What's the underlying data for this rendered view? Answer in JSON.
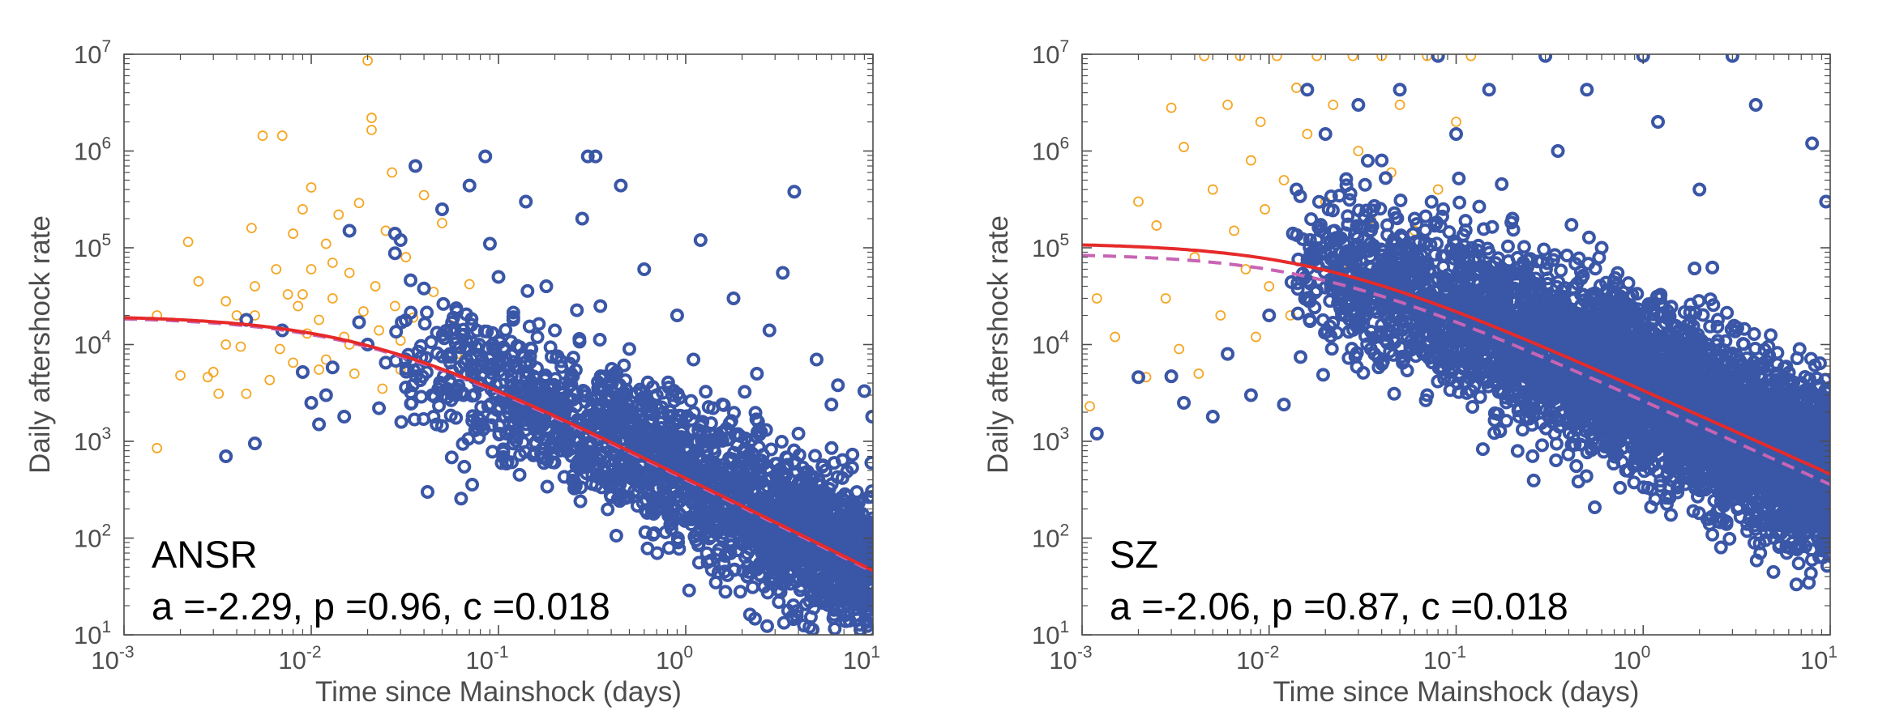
{
  "colors": {
    "background_events": "#f5a623",
    "aftershock_events": "#3a56a6",
    "fit_solid": "#e62a2a",
    "fit_dashed": "#c864b4",
    "axis": "#4d4d4d"
  },
  "chart_data": [
    {
      "type": "scatter",
      "title": "",
      "xlabel": "Time since Mainshock (days)",
      "ylabel": "Daily aftershock rate",
      "xscale": "log",
      "yscale": "log",
      "xlim": [
        0.001,
        10
      ],
      "ylim": [
        10,
        10000000
      ],
      "x_ticks": [
        {
          "base": "10",
          "exp": "-3"
        },
        {
          "base": "10",
          "exp": "-2"
        },
        {
          "base": "10",
          "exp": "-1"
        },
        {
          "base": "10",
          "exp": "0"
        },
        {
          "base": "10",
          "exp": "1"
        }
      ],
      "y_ticks": [
        {
          "base": "10",
          "exp": "1"
        },
        {
          "base": "10",
          "exp": "2"
        },
        {
          "base": "10",
          "exp": "3"
        },
        {
          "base": "10",
          "exp": "4"
        },
        {
          "base": "10",
          "exp": "5"
        },
        {
          "base": "10",
          "exp": "6"
        },
        {
          "base": "10",
          "exp": "7"
        }
      ],
      "annotation_name": "ANSR",
      "annotation_params": "a =-2.29, p =0.96, c =0.018",
      "fit": {
        "a": -2.29,
        "p": 0.96,
        "c": 0.018
      },
      "series": [
        {
          "marker": "small open circle, orange",
          "points": [
            [
              0.0015,
              850
            ],
            [
              0.0015,
              20000
            ],
            [
              0.002,
              4800
            ],
            [
              0.0022,
              115000
            ],
            [
              0.0025,
              45000
            ],
            [
              0.0028,
              4600
            ],
            [
              0.003,
              5200
            ],
            [
              0.0032,
              3100
            ],
            [
              0.0035,
              10000
            ],
            [
              0.0035,
              28000
            ],
            [
              0.004,
              20000
            ],
            [
              0.0042,
              9500
            ],
            [
              0.0045,
              3100
            ],
            [
              0.0048,
              160000
            ],
            [
              0.005,
              40000
            ],
            [
              0.005,
              20000
            ],
            [
              0.0055,
              1440000
            ],
            [
              0.006,
              4300
            ],
            [
              0.0065,
              60000
            ],
            [
              0.0068,
              9000
            ],
            [
              0.007,
              1440000
            ],
            [
              0.0075,
              33000
            ],
            [
              0.008,
              140000
            ],
            [
              0.008,
              6500
            ],
            [
              0.0085,
              25000
            ],
            [
              0.009,
              250000
            ],
            [
              0.0095,
              13000
            ],
            [
              0.01,
              420000
            ],
            [
              0.01,
              60000
            ],
            [
              0.011,
              18000
            ],
            [
              0.012,
              110000
            ],
            [
              0.012,
              7000
            ],
            [
              0.013,
              30000
            ],
            [
              0.014,
              220000
            ],
            [
              0.015,
              12000
            ],
            [
              0.016,
              55000
            ],
            [
              0.017,
              5000
            ],
            [
              0.018,
              290000
            ],
            [
              0.019,
              22000
            ],
            [
              0.02,
              8600000
            ],
            [
              0.021,
              2200000
            ],
            [
              0.021,
              1650000
            ],
            [
              0.022,
              40000
            ],
            [
              0.023,
              14000
            ],
            [
              0.025,
              150000
            ],
            [
              0.027,
              600000
            ],
            [
              0.028,
              25000
            ],
            [
              0.03,
              11000
            ],
            [
              0.032,
              80000
            ],
            [
              0.035,
              19000
            ],
            [
              0.04,
              350000
            ],
            [
              0.045,
              35000
            ],
            [
              0.05,
              180000
            ],
            [
              0.055,
              16000
            ],
            [
              0.06,
              8000
            ],
            [
              0.07,
              42000
            ],
            [
              0.08,
              6000
            ],
            [
              0.009,
              33000
            ],
            [
              0.011,
              5500
            ],
            [
              0.013,
              70000
            ],
            [
              0.016,
              10000
            ],
            [
              0.024,
              3500
            ],
            [
              0.03,
              5500
            ]
          ]
        },
        {
          "marker": "open circle, blue",
          "points": [
            [
              0.0035,
              700
            ],
            [
              0.0045,
              18000
            ],
            [
              0.005,
              950
            ],
            [
              0.007,
              14000
            ],
            [
              0.009,
              5200
            ],
            [
              0.01,
              2500
            ],
            [
              0.011,
              1500
            ],
            [
              0.012,
              3000
            ],
            [
              0.013,
              5800
            ],
            [
              0.015,
              1800
            ],
            [
              0.016,
              150000
            ],
            [
              0.018,
              17000
            ],
            [
              0.02,
              10000
            ],
            [
              0.023,
              2200
            ],
            [
              0.025,
              6500
            ],
            [
              0.028,
              140000
            ],
            [
              0.03,
              120000
            ],
            [
              0.032,
              3600
            ],
            [
              0.036,
              700000
            ],
            [
              0.04,
              38000
            ],
            [
              0.045,
              1800
            ],
            [
              0.05,
              250000
            ],
            [
              0.055,
              8000
            ],
            [
              0.06,
              22000
            ],
            [
              0.065,
              3000
            ],
            [
              0.07,
              440000
            ],
            [
              0.075,
              1300
            ],
            [
              0.085,
              880000
            ],
            [
              0.09,
              110000
            ],
            [
              0.1,
              50000
            ],
            [
              0.1,
              6000
            ],
            [
              0.11,
              1200
            ],
            [
              0.12,
              18000
            ],
            [
              0.13,
              2600
            ],
            [
              0.14,
              300000
            ],
            [
              0.15,
              9000
            ],
            [
              0.17,
              680
            ],
            [
              0.18,
              40000
            ],
            [
              0.2,
              14000
            ],
            [
              0.22,
              1100
            ],
            [
              0.25,
              4700
            ],
            [
              0.28,
              200000
            ],
            [
              0.3,
              880000
            ],
            [
              0.33,
              880000
            ],
            [
              0.35,
              25000
            ],
            [
              0.4,
              2800
            ],
            [
              0.45,
              440000
            ],
            [
              0.5,
              9000
            ],
            [
              0.55,
              800
            ],
            [
              0.6,
              60000
            ],
            [
              0.7,
              3000
            ],
            [
              0.8,
              700
            ],
            [
              0.9,
              20000
            ],
            [
              1,
              440
            ],
            [
              1.1,
              7000
            ],
            [
              1.2,
              120000
            ],
            [
              1.4,
              2200
            ],
            [
              1.6,
              450
            ],
            [
              1.8,
              30000
            ],
            [
              2,
              600
            ],
            [
              2.4,
              5000
            ],
            [
              2.8,
              14000
            ],
            [
              3,
              280
            ],
            [
              3.3,
              55000
            ],
            [
              3.8,
              380000
            ],
            [
              4,
              1200
            ],
            [
              4.5,
              180
            ],
            [
              5,
              7000
            ],
            [
              5.5,
              80
            ],
            [
              6,
              2400
            ],
            [
              6.5,
              3800
            ],
            [
              7,
              40
            ],
            [
              7.5,
              14
            ],
            [
              8,
              110
            ],
            [
              8.5,
              25
            ],
            [
              9,
              3300
            ],
            [
              9.5,
              11
            ],
            [
              9.8,
              600
            ],
            [
              9.9,
              1800
            ]
          ]
        }
      ]
    },
    {
      "type": "scatter",
      "title": "",
      "xlabel": "Time since Mainshock (days)",
      "ylabel": "Daily aftershock rate",
      "xscale": "log",
      "yscale": "log",
      "xlim": [
        0.001,
        10
      ],
      "ylim": [
        10,
        10000000
      ],
      "x_ticks": [
        {
          "base": "10",
          "exp": "-3"
        },
        {
          "base": "10",
          "exp": "-2"
        },
        {
          "base": "10",
          "exp": "-1"
        },
        {
          "base": "10",
          "exp": "0"
        },
        {
          "base": "10",
          "exp": "1"
        }
      ],
      "y_ticks": [
        {
          "base": "10",
          "exp": "1"
        },
        {
          "base": "10",
          "exp": "2"
        },
        {
          "base": "10",
          "exp": "3"
        },
        {
          "base": "10",
          "exp": "4"
        },
        {
          "base": "10",
          "exp": "5"
        },
        {
          "base": "10",
          "exp": "6"
        },
        {
          "base": "10",
          "exp": "7"
        }
      ],
      "annotation_name": "SZ",
      "annotation_params": "a =-2.06, p =0.87, c =0.018",
      "fit": {
        "a": -2.06,
        "p": 0.87,
        "c": 0.018
      },
      "series": [
        {
          "marker": "small open circle, orange",
          "points": [
            [
              0.0011,
              2300
            ],
            [
              0.0012,
              30000
            ],
            [
              0.0015,
              12000
            ],
            [
              0.002,
              300000
            ],
            [
              0.0022,
              4600
            ],
            [
              0.0025,
              170000
            ],
            [
              0.0028,
              30000
            ],
            [
              0.003,
              2800000
            ],
            [
              0.0033,
              9000
            ],
            [
              0.0035,
              1100000
            ],
            [
              0.004,
              80000
            ],
            [
              0.0042,
              5000
            ],
            [
              0.0045,
              9600000
            ],
            [
              0.005,
              400000
            ],
            [
              0.0055,
              20000
            ],
            [
              0.006,
              3000000
            ],
            [
              0.0065,
              150000
            ],
            [
              0.007,
              9600000
            ],
            [
              0.0075,
              60000
            ],
            [
              0.008,
              800000
            ],
            [
              0.0085,
              12000
            ],
            [
              0.009,
              2000000
            ],
            [
              0.0095,
              250000
            ],
            [
              0.01,
              40000
            ],
            [
              0.011,
              9600000
            ],
            [
              0.012,
              500000
            ],
            [
              0.013,
              20000
            ],
            [
              0.014,
              4500000
            ],
            [
              0.015,
              120000
            ],
            [
              0.016,
              1500000
            ],
            [
              0.018,
              9600000
            ],
            [
              0.02,
              300000
            ],
            [
              0.022,
              3000000
            ],
            [
              0.025,
              70000
            ],
            [
              0.028,
              9600000
            ],
            [
              0.03,
              1000000
            ],
            [
              0.035,
              200000
            ],
            [
              0.04,
              9600000
            ],
            [
              0.045,
              600000
            ],
            [
              0.05,
              3000000
            ],
            [
              0.06,
              150000
            ],
            [
              0.07,
              9600000
            ],
            [
              0.08,
              400000
            ],
            [
              0.1,
              2000000
            ],
            [
              0.12,
              9600000
            ]
          ]
        },
        {
          "marker": "open circle, blue",
          "points": [
            [
              0.0012,
              1200
            ],
            [
              0.002,
              4600
            ],
            [
              0.003,
              4700
            ],
            [
              0.0035,
              2500
            ],
            [
              0.005,
              1800
            ],
            [
              0.006,
              8000
            ],
            [
              0.008,
              3000
            ],
            [
              0.01,
              20000
            ],
            [
              0.012,
              2400
            ],
            [
              0.014,
              400000
            ],
            [
              0.016,
              4300000
            ],
            [
              0.018,
              120000
            ],
            [
              0.02,
              1500000
            ],
            [
              0.025,
              40000
            ],
            [
              0.03,
              3000000
            ],
            [
              0.035,
              9000
            ],
            [
              0.04,
              800000
            ],
            [
              0.05,
              4300000
            ],
            [
              0.06,
              200000
            ],
            [
              0.07,
              3000
            ],
            [
              0.08,
              9600000
            ],
            [
              0.1,
              1500000
            ],
            [
              0.12,
              5000
            ],
            [
              0.15,
              4300000
            ],
            [
              0.2,
              200000
            ],
            [
              0.25,
              2000
            ],
            [
              0.3,
              9600000
            ],
            [
              0.35,
              1000000
            ],
            [
              0.4,
              3000
            ],
            [
              0.5,
              4300000
            ],
            [
              0.6,
              100000
            ],
            [
              0.8,
              1500
            ],
            [
              1,
              9600000
            ],
            [
              1.2,
              2000000
            ],
            [
              1.5,
              800
            ],
            [
              2,
              400000
            ],
            [
              2.5,
              1200
            ],
            [
              3,
              9600000
            ],
            [
              3.5,
              600
            ],
            [
              4,
              3000000
            ],
            [
              5,
              100
            ],
            [
              6,
              400
            ],
            [
              7,
              150
            ],
            [
              8,
              1200000
            ],
            [
              9,
              80
            ],
            [
              9.5,
              300000
            ],
            [
              9.8,
              70
            ]
          ]
        }
      ]
    }
  ]
}
